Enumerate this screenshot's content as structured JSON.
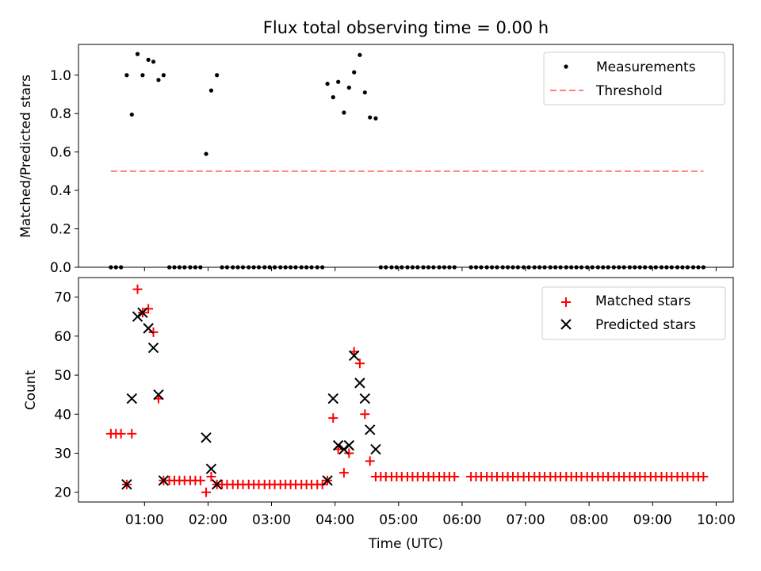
{
  "figure": {
    "title": "Flux total observing time = 0.00 h"
  },
  "chart_data": [
    {
      "type": "scatter",
      "panel": "top",
      "xlabel": "",
      "ylabel": "Matched/Predicted stars",
      "xlim_hours": [
        -0.04,
        10.27
      ],
      "ylim": [
        0,
        1.16
      ],
      "yticks": [
        "0.0",
        "0.2",
        "0.4",
        "0.6",
        "0.8",
        "1.0"
      ],
      "xticks_hours": [
        1,
        2,
        3,
        4,
        5,
        6,
        7,
        8,
        9,
        10
      ],
      "xtick_labels_shown": false,
      "grid": false,
      "legend_position": "top-right",
      "legend": [
        "Measurements",
        "Threshold"
      ],
      "series": [
        {
          "name": "Measurements",
          "marker": "dot",
          "color": "#000000",
          "points": [
            [
              0.47,
              0
            ],
            [
              0.55,
              0
            ],
            [
              0.63,
              0
            ],
            [
              0.72,
              1.0
            ],
            [
              0.8,
              0.795
            ],
            [
              0.89,
              1.11
            ],
            [
              0.97,
              1.0
            ],
            [
              1.06,
              1.08
            ],
            [
              1.14,
              1.07
            ],
            [
              1.22,
              0.975
            ],
            [
              1.3,
              1.0
            ],
            [
              1.39,
              0
            ],
            [
              1.47,
              0
            ],
            [
              1.55,
              0
            ],
            [
              1.63,
              0
            ],
            [
              1.72,
              0
            ],
            [
              1.8,
              0
            ],
            [
              1.88,
              0
            ],
            [
              1.97,
              0.59
            ],
            [
              2.05,
              0.92
            ],
            [
              2.14,
              1.0
            ],
            [
              2.22,
              0
            ],
            [
              2.3,
              0
            ],
            [
              2.39,
              0
            ],
            [
              2.47,
              0
            ],
            [
              2.55,
              0
            ],
            [
              2.64,
              0
            ],
            [
              2.72,
              0
            ],
            [
              2.8,
              0
            ],
            [
              2.89,
              0
            ],
            [
              2.97,
              0
            ],
            [
              3.05,
              0
            ],
            [
              3.14,
              0
            ],
            [
              3.22,
              0
            ],
            [
              3.3,
              0
            ],
            [
              3.38,
              0
            ],
            [
              3.47,
              0
            ],
            [
              3.55,
              0
            ],
            [
              3.63,
              0
            ],
            [
              3.72,
              0
            ],
            [
              3.8,
              0
            ],
            [
              3.88,
              0.955
            ],
            [
              3.97,
              0.885
            ],
            [
              4.05,
              0.965
            ],
            [
              4.14,
              0.805
            ],
            [
              4.22,
              0.935
            ],
            [
              4.3,
              1.015
            ],
            [
              4.39,
              1.105
            ],
            [
              4.47,
              0.91
            ],
            [
              4.55,
              0.78
            ],
            [
              4.64,
              0.775
            ],
            [
              4.72,
              0
            ],
            [
              4.8,
              0
            ],
            [
              4.89,
              0
            ],
            [
              4.97,
              0
            ],
            [
              5.05,
              0
            ],
            [
              5.14,
              0
            ],
            [
              5.22,
              0
            ],
            [
              5.3,
              0
            ],
            [
              5.39,
              0
            ],
            [
              5.47,
              0
            ],
            [
              5.55,
              0
            ],
            [
              5.64,
              0
            ],
            [
              5.72,
              0
            ],
            [
              5.8,
              0
            ],
            [
              5.88,
              0
            ],
            [
              6.14,
              0
            ],
            [
              6.22,
              0
            ],
            [
              6.3,
              0
            ],
            [
              6.39,
              0
            ],
            [
              6.47,
              0
            ],
            [
              6.55,
              0
            ],
            [
              6.64,
              0
            ],
            [
              6.72,
              0
            ],
            [
              6.8,
              0
            ],
            [
              6.88,
              0
            ],
            [
              6.97,
              0
            ],
            [
              7.05,
              0
            ],
            [
              7.14,
              0
            ],
            [
              7.22,
              0
            ],
            [
              7.3,
              0
            ],
            [
              7.39,
              0
            ],
            [
              7.47,
              0
            ],
            [
              7.55,
              0
            ],
            [
              7.64,
              0
            ],
            [
              7.72,
              0
            ],
            [
              7.8,
              0
            ],
            [
              7.88,
              0
            ],
            [
              7.97,
              0
            ],
            [
              8.05,
              0
            ],
            [
              8.14,
              0
            ],
            [
              8.22,
              0
            ],
            [
              8.3,
              0
            ],
            [
              8.39,
              0
            ],
            [
              8.47,
              0
            ],
            [
              8.55,
              0
            ],
            [
              8.64,
              0
            ],
            [
              8.72,
              0
            ],
            [
              8.8,
              0
            ],
            [
              8.88,
              0
            ],
            [
              8.97,
              0
            ],
            [
              9.05,
              0
            ],
            [
              9.14,
              0
            ],
            [
              9.22,
              0
            ],
            [
              9.3,
              0
            ],
            [
              9.39,
              0
            ],
            [
              9.47,
              0
            ],
            [
              9.55,
              0
            ],
            [
              9.64,
              0
            ],
            [
              9.72,
              0
            ],
            [
              9.8,
              0
            ]
          ]
        },
        {
          "name": "Threshold",
          "style": "dashed",
          "color": "#ff7f7f",
          "points": [
            [
              0.47,
              0.5
            ],
            [
              9.8,
              0.5
            ]
          ]
        }
      ]
    },
    {
      "type": "scatter",
      "panel": "bottom",
      "xlabel": "Time (UTC)",
      "ylabel": "Count",
      "xlim_hours": [
        -0.04,
        10.27
      ],
      "ylim": [
        17.5,
        75
      ],
      "yticks": [
        "20",
        "30",
        "40",
        "50",
        "60",
        "70"
      ],
      "xticks_hours": [
        1,
        2,
        3,
        4,
        5,
        6,
        7,
        8,
        9,
        10
      ],
      "xtick_labels": [
        "01:00",
        "02:00",
        "03:00",
        "04:00",
        "05:00",
        "06:00",
        "07:00",
        "08:00",
        "09:00",
        "10:00"
      ],
      "grid": false,
      "legend_position": "top-right",
      "legend": [
        "Matched stars",
        "Predicted stars"
      ],
      "series": [
        {
          "name": "Matched stars",
          "marker": "plus",
          "color": "#ff0000",
          "points": [
            [
              0.47,
              35
            ],
            [
              0.55,
              35
            ],
            [
              0.63,
              35
            ],
            [
              0.72,
              22
            ],
            [
              0.8,
              35
            ],
            [
              0.89,
              72
            ],
            [
              0.97,
              66
            ],
            [
              1.06,
              67
            ],
            [
              1.14,
              61
            ],
            [
              1.22,
              44
            ],
            [
              1.3,
              23
            ],
            [
              1.39,
              23
            ],
            [
              1.47,
              23
            ],
            [
              1.55,
              23
            ],
            [
              1.63,
              23
            ],
            [
              1.72,
              23
            ],
            [
              1.8,
              23
            ],
            [
              1.88,
              23
            ],
            [
              1.97,
              20
            ],
            [
              2.05,
              24
            ],
            [
              2.14,
              22
            ],
            [
              2.22,
              22
            ],
            [
              2.3,
              22
            ],
            [
              2.39,
              22
            ],
            [
              2.47,
              22
            ],
            [
              2.55,
              22
            ],
            [
              2.64,
              22
            ],
            [
              2.72,
              22
            ],
            [
              2.8,
              22
            ],
            [
              2.89,
              22
            ],
            [
              2.97,
              22
            ],
            [
              3.05,
              22
            ],
            [
              3.14,
              22
            ],
            [
              3.22,
              22
            ],
            [
              3.3,
              22
            ],
            [
              3.38,
              22
            ],
            [
              3.47,
              22
            ],
            [
              3.55,
              22
            ],
            [
              3.63,
              22
            ],
            [
              3.72,
              22
            ],
            [
              3.8,
              22
            ],
            [
              3.88,
              23
            ],
            [
              3.97,
              39
            ],
            [
              4.05,
              31
            ],
            [
              4.14,
              25
            ],
            [
              4.22,
              30
            ],
            [
              4.3,
              56
            ],
            [
              4.39,
              53
            ],
            [
              4.47,
              40
            ],
            [
              4.55,
              28
            ],
            [
              4.64,
              24
            ],
            [
              4.72,
              24
            ],
            [
              4.8,
              24
            ],
            [
              4.89,
              24
            ],
            [
              4.97,
              24
            ],
            [
              5.05,
              24
            ],
            [
              5.14,
              24
            ],
            [
              5.22,
              24
            ],
            [
              5.3,
              24
            ],
            [
              5.39,
              24
            ],
            [
              5.47,
              24
            ],
            [
              5.55,
              24
            ],
            [
              5.64,
              24
            ],
            [
              5.72,
              24
            ],
            [
              5.8,
              24
            ],
            [
              5.88,
              24
            ],
            [
              6.14,
              24
            ],
            [
              6.22,
              24
            ],
            [
              6.3,
              24
            ],
            [
              6.39,
              24
            ],
            [
              6.47,
              24
            ],
            [
              6.55,
              24
            ],
            [
              6.64,
              24
            ],
            [
              6.72,
              24
            ],
            [
              6.8,
              24
            ],
            [
              6.88,
              24
            ],
            [
              6.97,
              24
            ],
            [
              7.05,
              24
            ],
            [
              7.14,
              24
            ],
            [
              7.22,
              24
            ],
            [
              7.3,
              24
            ],
            [
              7.39,
              24
            ],
            [
              7.47,
              24
            ],
            [
              7.55,
              24
            ],
            [
              7.64,
              24
            ],
            [
              7.72,
              24
            ],
            [
              7.8,
              24
            ],
            [
              7.88,
              24
            ],
            [
              7.97,
              24
            ],
            [
              8.05,
              24
            ],
            [
              8.14,
              24
            ],
            [
              8.22,
              24
            ],
            [
              8.3,
              24
            ],
            [
              8.39,
              24
            ],
            [
              8.47,
              24
            ],
            [
              8.55,
              24
            ],
            [
              8.64,
              24
            ],
            [
              8.72,
              24
            ],
            [
              8.8,
              24
            ],
            [
              8.88,
              24
            ],
            [
              8.97,
              24
            ],
            [
              9.05,
              24
            ],
            [
              9.14,
              24
            ],
            [
              9.22,
              24
            ],
            [
              9.3,
              24
            ],
            [
              9.39,
              24
            ],
            [
              9.47,
              24
            ],
            [
              9.55,
              24
            ],
            [
              9.64,
              24
            ],
            [
              9.72,
              24
            ],
            [
              9.8,
              24
            ]
          ]
        },
        {
          "name": "Predicted stars",
          "marker": "x",
          "color": "#000000",
          "points": [
            [
              0.72,
              22
            ],
            [
              0.8,
              44
            ],
            [
              0.89,
              65
            ],
            [
              0.97,
              66
            ],
            [
              1.06,
              62
            ],
            [
              1.14,
              57
            ],
            [
              1.22,
              45
            ],
            [
              1.3,
              23
            ],
            [
              1.97,
              34
            ],
            [
              2.05,
              26
            ],
            [
              2.14,
              22
            ],
            [
              3.88,
              23
            ],
            [
              3.97,
              44
            ],
            [
              4.05,
              32
            ],
            [
              4.14,
              31
            ],
            [
              4.22,
              32
            ],
            [
              4.3,
              55
            ],
            [
              4.39,
              48
            ],
            [
              4.47,
              44
            ],
            [
              4.55,
              36
            ],
            [
              4.64,
              31
            ]
          ]
        }
      ]
    }
  ]
}
